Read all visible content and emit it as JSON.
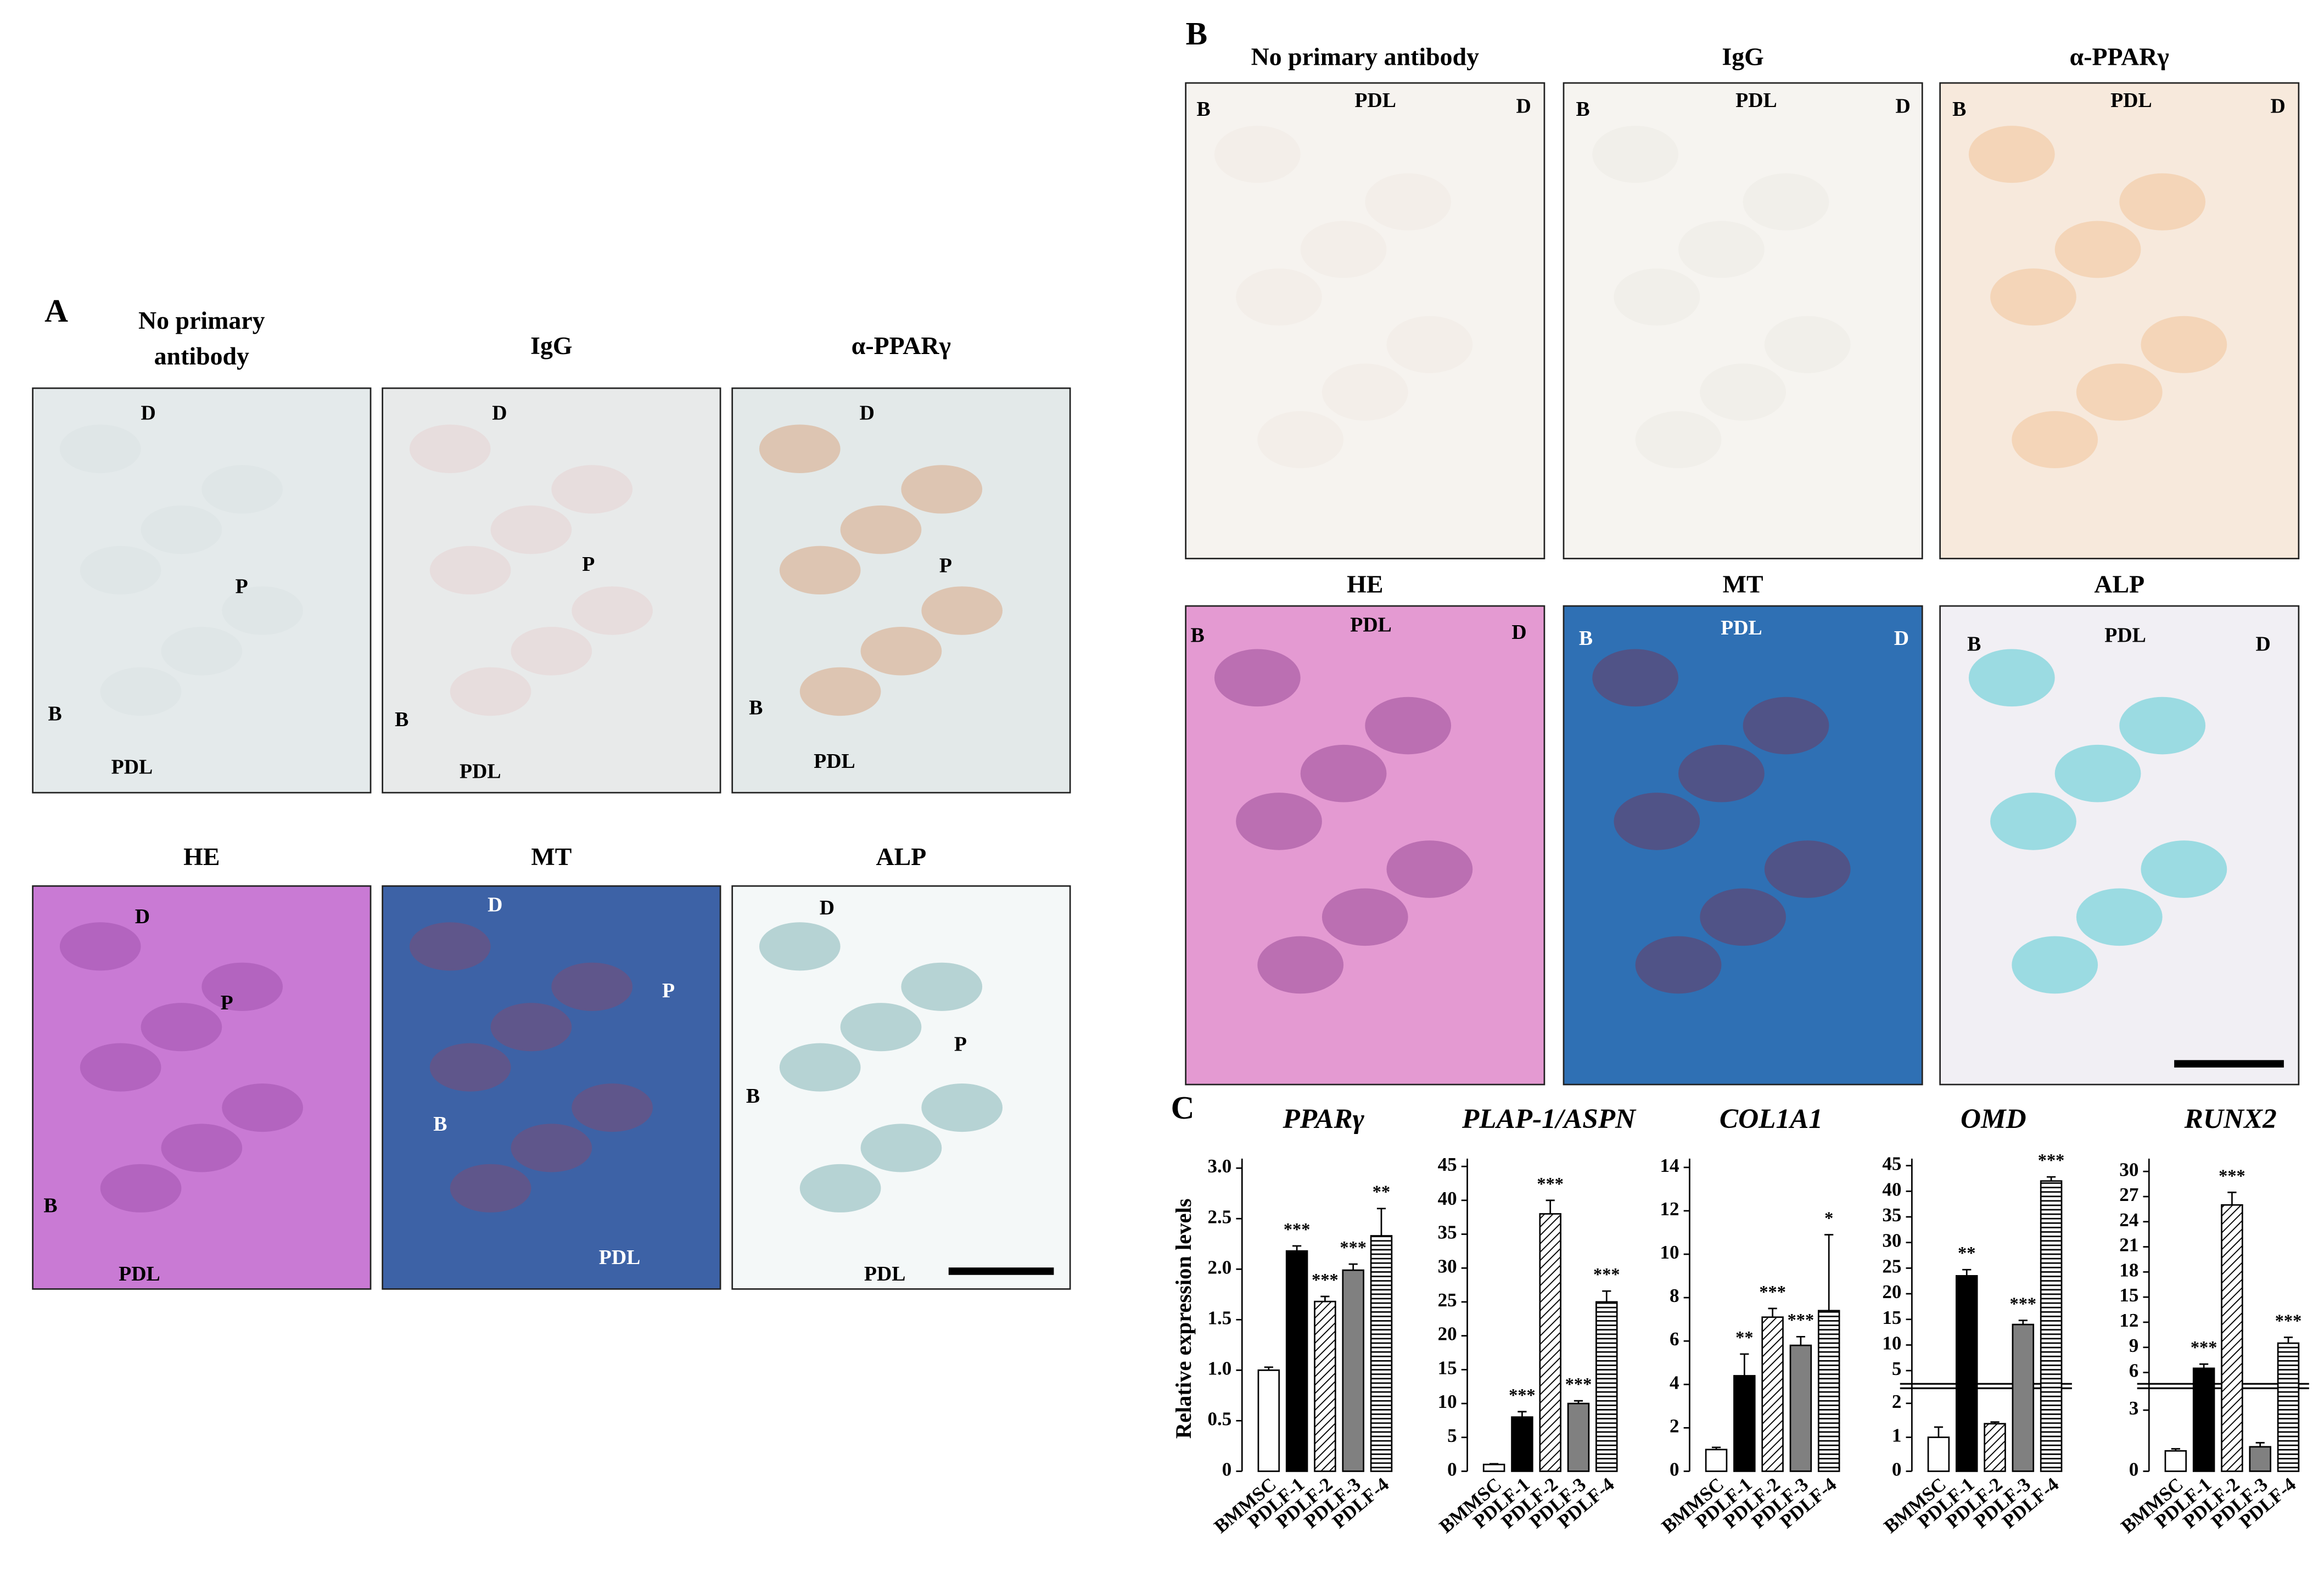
{
  "panel_a": {
    "label": "A",
    "images": [
      {
        "title_lines": [
          "No primary",
          "antibody"
        ],
        "annotations": [
          "D",
          "P",
          "B",
          "PDL"
        ]
      },
      {
        "title_lines": [
          "IgG"
        ],
        "annotations": [
          "D",
          "P",
          "B",
          "PDL"
        ]
      },
      {
        "title_lines": [
          "α-PPARγ"
        ],
        "annotations": [
          "D",
          "P",
          "B",
          "PDL"
        ]
      },
      {
        "title_lines": [
          "HE"
        ],
        "annotations": [
          "D",
          "P",
          "B",
          "PDL"
        ]
      },
      {
        "title_lines": [
          "MT"
        ],
        "annotations": [
          "D",
          "P",
          "B",
          "PDL"
        ]
      },
      {
        "title_lines": [
          "ALP"
        ],
        "annotations": [
          "D",
          "P",
          "B",
          "PDL"
        ]
      }
    ]
  },
  "panel_b": {
    "label": "B",
    "images": [
      {
        "title_lines": [
          "No primary antibody"
        ],
        "annotations": [
          "B",
          "PDL",
          "D"
        ]
      },
      {
        "title_lines": [
          "IgG"
        ],
        "annotations": [
          "B",
          "PDL",
          "D"
        ]
      },
      {
        "title_lines": [
          "α-PPARγ"
        ],
        "annotations": [
          "B",
          "PDL",
          "D"
        ]
      },
      {
        "title_lines": [
          "HE"
        ],
        "annotations": [
          "B",
          "PDL",
          "D"
        ]
      },
      {
        "title_lines": [
          "MT"
        ],
        "annotations": [
          "B",
          "PDL",
          "D"
        ]
      },
      {
        "title_lines": [
          "ALP"
        ],
        "annotations": [
          "B",
          "PDL",
          "D"
        ]
      }
    ]
  },
  "panel_c": {
    "label": "C",
    "y_label": "Relative expression levels"
  },
  "chart_data": [
    {
      "type": "bar",
      "title": "PPARγ",
      "categories": [
        "BMMSC",
        "PDLF-1",
        "PDLF-2",
        "PDLF-3",
        "PDLF-4"
      ],
      "values": [
        1.0,
        2.18,
        1.68,
        1.99,
        2.33
      ],
      "errors": [
        0.03,
        0.05,
        0.05,
        0.06,
        0.27
      ],
      "significance": [
        null,
        "***",
        "***",
        "***",
        "**"
      ],
      "bar_fills": [
        "white",
        "black",
        "diagonal-hatch",
        "gray",
        "horizontal-hatch"
      ],
      "ylim": [
        0,
        3.05
      ],
      "yticks": [
        0,
        0.5,
        {
          "value": 1,
          "label": "1.0"
        },
        1.5,
        {
          "value": 2,
          "label": "2.0"
        },
        2.5,
        {
          "value": 3,
          "label": "3.0"
        }
      ]
    },
    {
      "type": "bar",
      "title": "PLAP-1/ASPN",
      "categories": [
        "BMMSC",
        "PDLF-1",
        "PDLF-2",
        "PDLF-3",
        "PDLF-4"
      ],
      "values": [
        1,
        8,
        38,
        10,
        25
      ],
      "errors": [
        0.1,
        0.8,
        2,
        0.4,
        1.6
      ],
      "significance": [
        null,
        "***",
        "***",
        "***",
        "***"
      ],
      "bar_fills": [
        "white",
        "black",
        "diagonal-hatch",
        "gray",
        "horizontal-hatch"
      ],
      "ylim": [
        0,
        45.5
      ],
      "yticks": [
        0,
        5,
        10,
        15,
        20,
        25,
        30,
        35,
        40,
        45
      ]
    },
    {
      "type": "bar",
      "title": "COL1A1",
      "categories": [
        "BMMSC",
        "PDLF-1",
        "PDLF-2",
        "PDLF-3",
        "PDLF-4"
      ],
      "values": [
        1.0,
        4.4,
        7.1,
        5.8,
        7.4
      ],
      "errors": [
        0.1,
        1.0,
        0.4,
        0.4,
        3.5
      ],
      "significance": [
        null,
        "**",
        "***",
        "***",
        "*"
      ],
      "bar_fills": [
        "white",
        "black",
        "diagonal-hatch",
        "gray",
        "horizontal-hatch"
      ],
      "ylim": [
        0,
        14.2
      ],
      "yticks": [
        0,
        2,
        4,
        6,
        8,
        10,
        12,
        14
      ]
    },
    {
      "type": "bar",
      "title": "OMD",
      "categories": [
        "BMMSC",
        "PDLF-1",
        "PDLF-2",
        "PDLF-3",
        "PDLF-4"
      ],
      "values": [
        1.0,
        23.5,
        1.4,
        14,
        42
      ],
      "errors": [
        0.3,
        1.2,
        0.05,
        0.8,
        0.8
      ],
      "significance": [
        null,
        "**",
        null,
        "***",
        "***"
      ],
      "bar_fills": [
        "white",
        "black",
        "diagonal-hatch",
        "gray",
        "horizontal-hatch"
      ],
      "lower_ylim": [
        0,
        2.4
      ],
      "lower_yticks": [
        0,
        1,
        2
      ],
      "upper_ylim": [
        3,
        45.5
      ],
      "upper_yticks": [
        5,
        10,
        15,
        20,
        25,
        30,
        35,
        40,
        45
      ]
    },
    {
      "type": "bar",
      "title": "RUNX2",
      "categories": [
        "BMMSC",
        "PDLF-1",
        "PDLF-2",
        "PDLF-3",
        "PDLF-4"
      ],
      "values": [
        1.0,
        6.5,
        26,
        1.2,
        9.5
      ],
      "errors": [
        0.1,
        0.5,
        1.5,
        0.2,
        0.7
      ],
      "significance": [
        null,
        "***",
        "***",
        null,
        "***"
      ],
      "bar_fills": [
        "white",
        "black",
        "diagonal-hatch",
        "gray",
        "horizontal-hatch"
      ],
      "lower_ylim": [
        0,
        4
      ],
      "lower_yticks": [
        0,
        3
      ],
      "upper_ylim": [
        5,
        31
      ],
      "upper_yticks": [
        6,
        9,
        12,
        15,
        18,
        21,
        24,
        27,
        30
      ]
    }
  ]
}
